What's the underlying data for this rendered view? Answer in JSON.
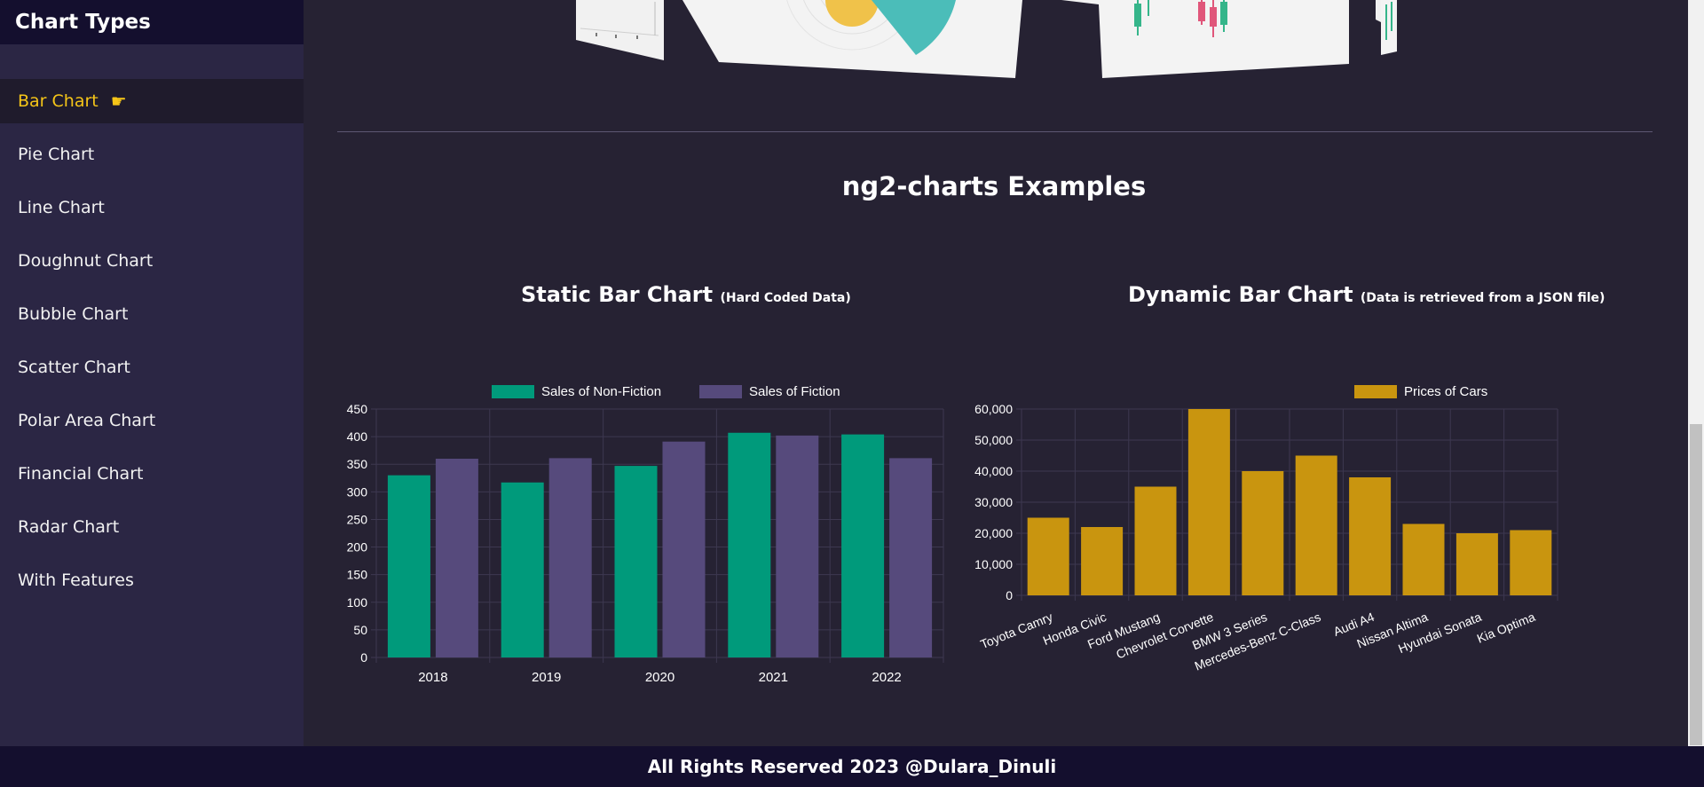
{
  "sidebar": {
    "title": "Chart Types",
    "items": [
      {
        "label": "Bar Chart",
        "active": true
      },
      {
        "label": "Pie Chart"
      },
      {
        "label": "Line Chart"
      },
      {
        "label": "Doughnut Chart"
      },
      {
        "label": "Bubble Chart"
      },
      {
        "label": "Scatter Chart"
      },
      {
        "label": "Polar Area Chart"
      },
      {
        "label": "Financial Chart"
      },
      {
        "label": "Radar Chart"
      },
      {
        "label": "With Features"
      }
    ],
    "active_icon": "pointing-hand-icon"
  },
  "main": {
    "heading": "ng2-charts Examples"
  },
  "charts": {
    "static": {
      "title": "Static Bar Chart",
      "subtitle": "(Hard Coded Data)"
    },
    "dynamic": {
      "title": "Dynamic Bar Chart",
      "subtitle": "(Data is retrieved from a JSON file)"
    }
  },
  "footer": {
    "text": "All Rights Reserved 2023 @Dulara_Dinuli"
  },
  "colors": {
    "background": "#262233",
    "sidebar": "#2b2644",
    "header": "#140f2e",
    "accent": "#f5c518",
    "non_fiction": "#009a7b",
    "fiction": "#564a7c",
    "cars": "#c9950f"
  },
  "chart_data": [
    {
      "type": "bar",
      "categories": [
        "2018",
        "2019",
        "2020",
        "2021",
        "2022"
      ],
      "series": [
        {
          "name": "Sales of Non-Fiction",
          "values": [
            330,
            317,
            347,
            407,
            404
          ]
        },
        {
          "name": "Sales of Fiction",
          "values": [
            360,
            361,
            391,
            402,
            361
          ]
        }
      ],
      "ylim": [
        0,
        450
      ],
      "yticks": [
        0,
        50,
        100,
        150,
        200,
        250,
        300,
        350,
        400,
        450
      ],
      "legend": "top",
      "grid": true
    },
    {
      "type": "bar",
      "categories": [
        "Toyota Camry",
        "Honda Civic",
        "Ford Mustang",
        "Chevrolet Corvette",
        "BMW 3 Series",
        "Mercedes-Benz C-Class",
        "Audi A4",
        "Nissan Altima",
        "Hyundai Sonata",
        "Kia Optima"
      ],
      "series": [
        {
          "name": "Prices of Cars",
          "values": [
            25000,
            22000,
            35000,
            60000,
            40000,
            45000,
            38000,
            23000,
            20000,
            21000
          ]
        }
      ],
      "ylim": [
        0,
        60000
      ],
      "yticks": [
        "0",
        "10,000",
        "20,000",
        "30,000",
        "40,000",
        "50,000",
        "60,000"
      ],
      "legend": "top",
      "grid": true
    }
  ]
}
